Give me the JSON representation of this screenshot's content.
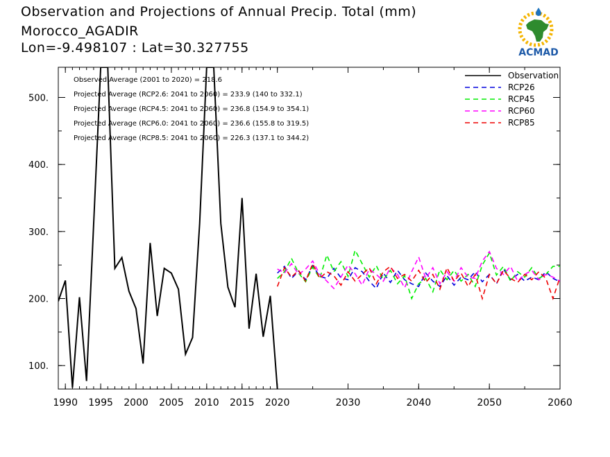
{
  "header": {
    "title": "Observation and Projections of Annual Precip. Total (mm)",
    "location": "Morocco_AGADIR",
    "coords": "Lon=-9.498107 : Lat=30.327755"
  },
  "logo": {
    "text": "ACMAD"
  },
  "annotations": [
    "Observed Average (2001 to 2020) = 218.6",
    "Projected Average (RCP2.6: 2041 to 2060) = 233.9 (140 to 332.1)",
    "Projected Average (RCP4.5: 2041 to 2060) = 236.8 (154.9 to 354.1)",
    "Projected Average (RCP6.0: 2041 to 2060) = 236.6 (155.8 to 319.5)",
    "Projected Average (RCP8.5: 2041 to 2060) = 226.3 (137.1 to 344.2)"
  ],
  "chart_data": {
    "type": "line",
    "title": "Observation and Projections of Annual Precip. Total (mm)",
    "xlabel": "",
    "ylabel": "",
    "grid": false,
    "legend_position": "top-right",
    "xlim": [
      1989,
      2060
    ],
    "ylim": [
      65,
      545
    ],
    "x_ticks": [
      "1990",
      "1995",
      "2000",
      "2005",
      "2010",
      "2015",
      "2020",
      "2030",
      "2040",
      "2050",
      "2060"
    ],
    "y_ticks": [
      "100.",
      "200.",
      "300.",
      "400.",
      "500."
    ],
    "series": [
      {
        "name": "Observation",
        "color": "#000000",
        "dash": "solid",
        "x": [
          1989,
          1990,
          1991,
          1992,
          1993,
          1994,
          1995,
          1996,
          1997,
          1998,
          1999,
          2000,
          2001,
          2002,
          2003,
          2004,
          2005,
          2006,
          2007,
          2008,
          2009,
          2010,
          2011,
          2012,
          2013,
          2014,
          2015,
          2016,
          2017,
          2018,
          2019,
          2020
        ],
        "values": [
          196,
          227,
          67,
          202,
          77,
          310,
          545,
          545,
          245,
          261,
          211,
          185,
          103,
          283,
          174,
          245,
          238,
          214,
          117,
          142,
          312,
          545,
          545,
          312,
          217,
          187,
          350,
          155,
          237,
          143,
          204,
          65
        ]
      },
      {
        "name": "RCP26",
        "color": "#0000dd",
        "dash": "dashed",
        "x": [
          2020,
          2021,
          2022,
          2023,
          2024,
          2025,
          2026,
          2027,
          2028,
          2029,
          2030,
          2031,
          2032,
          2033,
          2034,
          2035,
          2036,
          2037,
          2038,
          2039,
          2040,
          2041,
          2042,
          2043,
          2044,
          2045,
          2046,
          2047,
          2048,
          2049,
          2050,
          2051,
          2052,
          2053,
          2054,
          2055,
          2056,
          2057,
          2058,
          2059,
          2060
        ],
        "values": [
          238,
          248,
          230,
          241,
          228,
          249,
          233,
          230,
          245,
          231,
          228,
          246,
          240,
          226,
          215,
          238,
          224,
          242,
          228,
          222,
          218,
          238,
          226,
          218,
          234,
          220,
          232,
          228,
          240,
          225,
          236,
          222,
          244,
          228,
          236,
          226,
          232,
          228,
          240,
          230,
          225
        ]
      },
      {
        "name": "RCP45",
        "color": "#00ee00",
        "dash": "dashed",
        "x": [
          2020,
          2021,
          2022,
          2023,
          2024,
          2025,
          2026,
          2027,
          2028,
          2029,
          2030,
          2031,
          2032,
          2033,
          2034,
          2035,
          2036,
          2037,
          2038,
          2039,
          2040,
          2041,
          2042,
          2043,
          2044,
          2045,
          2046,
          2047,
          2048,
          2049,
          2050,
          2051,
          2052,
          2053,
          2054,
          2055,
          2056,
          2057,
          2058,
          2059,
          2060
        ],
        "values": [
          230,
          240,
          260,
          238,
          225,
          247,
          230,
          265,
          240,
          255,
          233,
          272,
          252,
          232,
          249,
          228,
          242,
          222,
          234,
          200,
          222,
          230,
          210,
          243,
          228,
          242,
          226,
          236,
          218,
          250,
          268,
          235,
          248,
          226,
          240,
          232,
          246,
          230,
          236,
          248,
          248
        ]
      },
      {
        "name": "RCP60",
        "color": "#ff00ff",
        "dash": "dashed",
        "x": [
          2020,
          2021,
          2022,
          2023,
          2024,
          2025,
          2026,
          2027,
          2028,
          2029,
          2030,
          2031,
          2032,
          2033,
          2034,
          2035,
          2036,
          2037,
          2038,
          2039,
          2040,
          2041,
          2042,
          2043,
          2044,
          2045,
          2046,
          2047,
          2048,
          2049,
          2050,
          2051,
          2052,
          2053,
          2054,
          2055,
          2056,
          2057,
          2058,
          2059,
          2060
        ],
        "values": [
          244,
          238,
          252,
          236,
          244,
          256,
          236,
          226,
          215,
          232,
          250,
          237,
          220,
          244,
          236,
          226,
          246,
          236,
          216,
          240,
          262,
          230,
          246,
          222,
          240,
          226,
          246,
          232,
          230,
          256,
          270,
          245,
          236,
          248,
          226,
          236,
          242,
          228,
          236,
          232,
          226
        ]
      },
      {
        "name": "RCP85",
        "color": "#ee0000",
        "dash": "dashed",
        "x": [
          2020,
          2021,
          2022,
          2023,
          2024,
          2025,
          2026,
          2027,
          2028,
          2029,
          2030,
          2031,
          2032,
          2033,
          2034,
          2035,
          2036,
          2037,
          2038,
          2039,
          2040,
          2041,
          2042,
          2043,
          2044,
          2045,
          2046,
          2047,
          2048,
          2049,
          2050,
          2051,
          2052,
          2053,
          2054,
          2055,
          2056,
          2057,
          2058,
          2059,
          2060
        ],
        "values": [
          218,
          246,
          232,
          242,
          226,
          252,
          230,
          240,
          234,
          220,
          240,
          226,
          236,
          246,
          222,
          240,
          248,
          230,
          236,
          226,
          242,
          224,
          236,
          214,
          246,
          226,
          238,
          218,
          236,
          200,
          236,
          222,
          242,
          230,
          224,
          236,
          228,
          240,
          230,
          200,
          232
        ]
      }
    ]
  }
}
